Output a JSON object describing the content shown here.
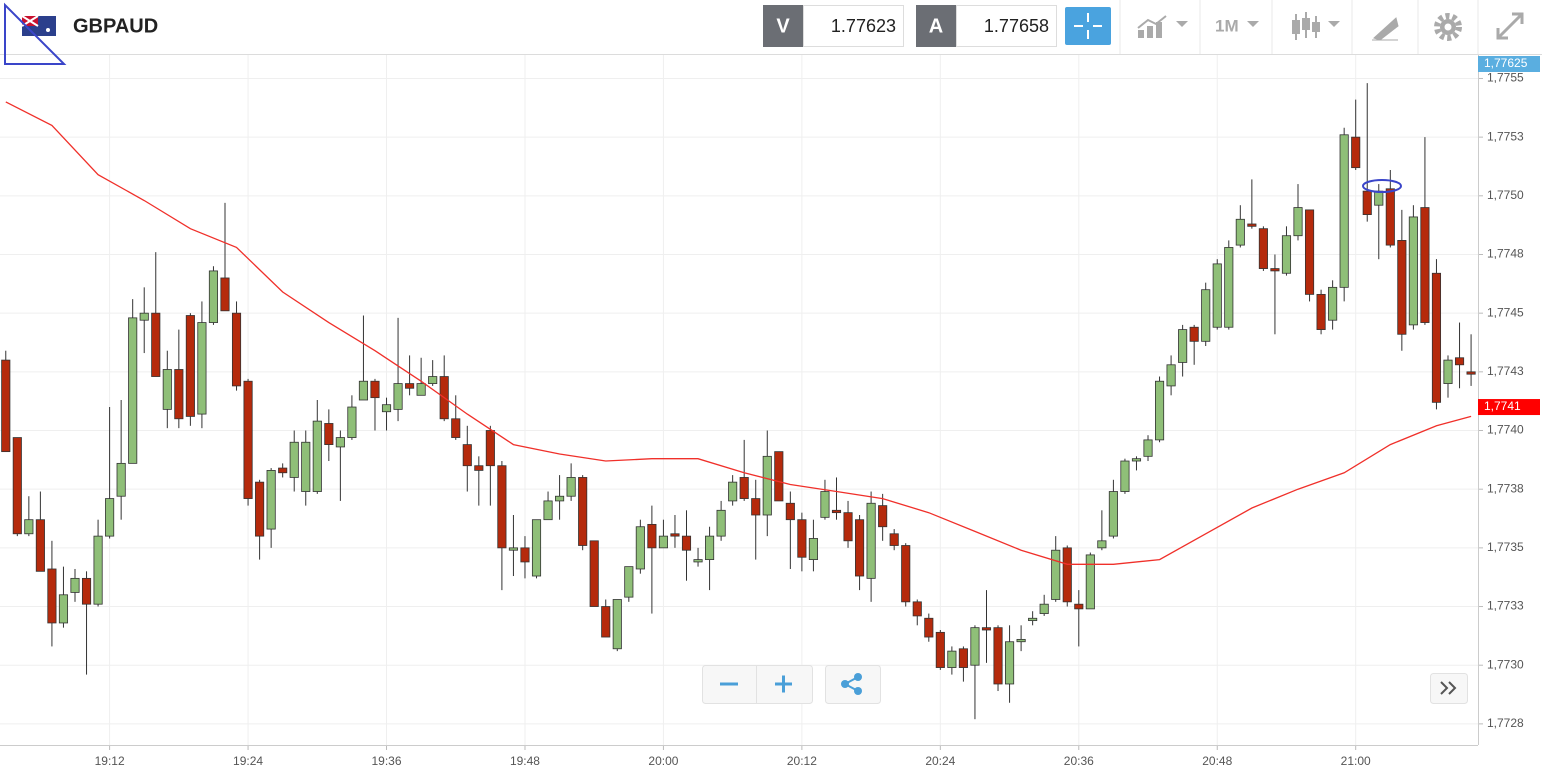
{
  "chart_data": {
    "type": "candlestick",
    "symbol": "GBPAUD",
    "bid_label": "V",
    "bid": 1.77623,
    "ask_label": "A",
    "ask": 1.77658,
    "timeframe": "1M",
    "up_color": "#8fbf78",
    "down_color": "#b52a0c",
    "grid": true,
    "x": [
      1143,
      1144,
      1145,
      1146,
      1147,
      1148,
      1149,
      1150,
      1151,
      1152,
      1153,
      1154,
      1155,
      1156,
      1157,
      1158,
      1159,
      1160,
      1161,
      1162,
      1163,
      1164,
      1165,
      1166,
      1167,
      1168,
      1169,
      1170,
      1171,
      1172,
      1173,
      1174,
      1175,
      1176,
      1177,
      1178,
      1179,
      1180,
      1181,
      1182,
      1183,
      1184,
      1185,
      1186,
      1187,
      1188,
      1189,
      1190,
      1191,
      1192,
      1193,
      1194,
      1195,
      1196,
      1197,
      1198,
      1199,
      1200,
      1201,
      1202,
      1203,
      1204,
      1205,
      1206,
      1207,
      1208,
      1209,
      1210,
      1211,
      1212,
      1213,
      1214,
      1215,
      1216,
      1217,
      1218,
      1219,
      1220,
      1221,
      1222,
      1223,
      1224,
      1225,
      1226,
      1227,
      1228,
      1229,
      1230,
      1231,
      1232,
      1233,
      1234,
      1235,
      1236,
      1237,
      1238,
      1239,
      1240,
      1241,
      1242,
      1243,
      1244,
      1245,
      1246,
      1247,
      1248,
      1249,
      1250,
      1251,
      1252,
      1253,
      1254,
      1255,
      1256,
      1257,
      1258,
      1259,
      1260,
      1261,
      1262,
      1263,
      1264,
      1265,
      1266,
      1267,
      1268,
      1269,
      1270
    ],
    "open": [
      1.7743,
      1.77397,
      1.77356,
      1.77362,
      1.77341,
      1.77318,
      1.77331,
      1.77337,
      1.77326,
      1.77355,
      1.77372,
      1.77386,
      1.77447,
      1.7745,
      1.77409,
      1.77426,
      1.77449,
      1.77407,
      1.77446,
      1.77465,
      1.7745,
      1.77421,
      1.77378,
      1.77358,
      1.77384,
      1.7738,
      1.77374,
      1.77374,
      1.77403,
      1.77393,
      1.77397,
      1.77413,
      1.77421,
      1.77408,
      1.77409,
      1.7742,
      1.77415,
      1.7742,
      1.77423,
      1.77405,
      1.77394,
      1.77385,
      1.774,
      1.77385,
      1.77349,
      1.7735,
      1.77338,
      1.77362,
      1.7737,
      1.77372,
      1.7738,
      1.77353,
      1.77325,
      1.77307,
      1.77329,
      1.77341,
      1.7736,
      1.7735,
      1.77356,
      1.77355,
      1.77344,
      1.77345,
      1.77355,
      1.7737,
      1.7738,
      1.77371,
      1.77364,
      1.77391,
      1.77369,
      1.77362,
      1.77345,
      1.77363,
      1.77366,
      1.77365,
      1.77362,
      1.77337,
      1.77368,
      1.77356,
      1.77351,
      1.77327,
      1.7732,
      1.77314,
      1.77299,
      1.77307,
      1.773,
      1.77316,
      1.77316,
      1.77292,
      1.7731,
      1.77319,
      1.77322,
      1.77328,
      1.7735,
      1.77326,
      1.77324,
      1.7735,
      1.77355,
      1.77374,
      1.77387,
      1.77389,
      1.77396,
      1.77419,
      1.77429,
      1.77444,
      1.77438,
      1.77444,
      1.77444,
      1.77479,
      1.77488,
      1.77486,
      1.77469,
      1.77467,
      1.77483,
      1.77494,
      1.77458,
      1.77447,
      1.77461,
      1.77525,
      1.77502,
      1.77496,
      1.77503,
      1.77481,
      1.77445,
      1.77495,
      1.77467,
      1.7742,
      1.77431,
      1.77425
    ],
    "high": [
      1.77434,
      1.77397,
      1.77372,
      1.77374,
      1.77353,
      1.77342,
      1.77341,
      1.7734,
      1.77362,
      1.7741,
      1.77413,
      1.77456,
      1.77461,
      1.77476,
      1.77434,
      1.77443,
      1.7745,
      1.77455,
      1.7747,
      1.77497,
      1.77455,
      1.77422,
      1.77379,
      1.77384,
      1.77386,
      1.774,
      1.774,
      1.77413,
      1.77409,
      1.774,
      1.77415,
      1.77449,
      1.77422,
      1.77414,
      1.77448,
      1.77432,
      1.77431,
      1.7743,
      1.77432,
      1.77415,
      1.77402,
      1.77389,
      1.77402,
      1.77387,
      1.77364,
      1.77355,
      1.77362,
      1.77374,
      1.77381,
      1.77386,
      1.77381,
      1.77353,
      1.77328,
      1.77328,
      1.77342,
      1.77362,
      1.77368,
      1.77362,
      1.77364,
      1.77366,
      1.7735,
      1.77359,
      1.7737,
      1.77381,
      1.77396,
      1.77379,
      1.774,
      1.77391,
      1.77374,
      1.77365,
      1.77362,
      1.77379,
      1.7738,
      1.7737,
      1.77364,
      1.77374,
      1.77373,
      1.77358,
      1.77352,
      1.77328,
      1.77322,
      1.77315,
      1.77308,
      1.77308,
      1.77317,
      1.77332,
      1.77317,
      1.77317,
      1.77317,
      1.77323,
      1.7733,
      1.77355,
      1.77351,
      1.77332,
      1.77348,
      1.77366,
      1.77379,
      1.77388,
      1.77389,
      1.77398,
      1.77423,
      1.77432,
      1.77445,
      1.77445,
      1.77463,
      1.77473,
      1.77481,
      1.77496,
      1.77507,
      1.77487,
      1.77475,
      1.77487,
      1.77505,
      1.77494,
      1.7746,
      1.77464,
      1.77529,
      1.77541,
      1.77548,
      1.77505,
      1.77511,
      1.77494,
      1.77496,
      1.77525,
      1.77473,
      1.77432,
      1.77446,
      1.77441
    ],
    "low": [
      1.77391,
      1.77355,
      1.77355,
      1.7734,
      1.77308,
      1.77316,
      1.77327,
      1.77296,
      1.77325,
      1.77354,
      1.77362,
      1.77386,
      1.77433,
      1.77423,
      1.77401,
      1.77401,
      1.77402,
      1.77401,
      1.77445,
      1.77451,
      1.77417,
      1.77368,
      1.77345,
      1.7735,
      1.7738,
      1.77374,
      1.77368,
      1.77373,
      1.77387,
      1.7737,
      1.77396,
      1.77413,
      1.774,
      1.774,
      1.77404,
      1.77415,
      1.77415,
      1.77419,
      1.77404,
      1.77396,
      1.77374,
      1.77368,
      1.77368,
      1.77332,
      1.77338,
      1.77337,
      1.77337,
      1.77362,
      1.77362,
      1.7737,
      1.77349,
      1.77325,
      1.77312,
      1.77306,
      1.77327,
      1.77339,
      1.77322,
      1.7735,
      1.7735,
      1.77336,
      1.77342,
      1.77332,
      1.77353,
      1.77368,
      1.7737,
      1.77345,
      1.77355,
      1.7737,
      1.77341,
      1.7734,
      1.7734,
      1.77362,
      1.77362,
      1.7735,
      1.77332,
      1.77327,
      1.77353,
      1.77349,
      1.77325,
      1.77317,
      1.7731,
      1.77298,
      1.77296,
      1.77293,
      1.77277,
      1.77301,
      1.77289,
      1.77284,
      1.77306,
      1.77317,
      1.77321,
      1.77327,
      1.77325,
      1.77308,
      1.77324,
      1.77349,
      1.77354,
      1.77373,
      1.77383,
      1.77387,
      1.77395,
      1.77415,
      1.77423,
      1.77428,
      1.77436,
      1.77443,
      1.77443,
      1.77478,
      1.77486,
      1.77468,
      1.77441,
      1.77466,
      1.77481,
      1.77455,
      1.77441,
      1.77443,
      1.77455,
      1.77511,
      1.77489,
      1.77473,
      1.77478,
      1.77434,
      1.77443,
      1.77445,
      1.77409,
      1.77414,
      1.77418,
      1.77419
    ],
    "close": [
      1.77391,
      1.77356,
      1.77362,
      1.7734,
      1.77318,
      1.7733,
      1.77337,
      1.77326,
      1.77355,
      1.77371,
      1.77386,
      1.77448,
      1.7745,
      1.77423,
      1.77426,
      1.77405,
      1.77406,
      1.77446,
      1.77468,
      1.77451,
      1.77419,
      1.77371,
      1.77355,
      1.77383,
      1.77382,
      1.77395,
      1.77395,
      1.77404,
      1.77394,
      1.77397,
      1.7741,
      1.77421,
      1.77414,
      1.77411,
      1.7742,
      1.77418,
      1.7742,
      1.77423,
      1.77405,
      1.77397,
      1.77385,
      1.77383,
      1.77385,
      1.7735,
      1.7735,
      1.77344,
      1.77362,
      1.7737,
      1.77372,
      1.7738,
      1.77351,
      1.77325,
      1.77312,
      1.77328,
      1.77342,
      1.77359,
      1.7735,
      1.77355,
      1.77355,
      1.77349,
      1.77345,
      1.77355,
      1.77366,
      1.77378,
      1.77371,
      1.77364,
      1.77389,
      1.7737,
      1.77362,
      1.77346,
      1.77354,
      1.77374,
      1.77365,
      1.77353,
      1.77338,
      1.77369,
      1.77359,
      1.77351,
      1.77327,
      1.77321,
      1.77312,
      1.77299,
      1.77306,
      1.77299,
      1.77316,
      1.77315,
      1.77292,
      1.7731,
      1.77311,
      1.7732,
      1.77326,
      1.77349,
      1.77327,
      1.77324,
      1.77347,
      1.77353,
      1.77374,
      1.77387,
      1.77388,
      1.77396,
      1.77421,
      1.77428,
      1.77443,
      1.77438,
      1.7746,
      1.77471,
      1.77478,
      1.7749,
      1.77487,
      1.77469,
      1.77468,
      1.77483,
      1.77495,
      1.77458,
      1.77443,
      1.77461,
      1.77526,
      1.77512,
      1.77492,
      1.77502,
      1.77479,
      1.77441,
      1.77491,
      1.77446,
      1.77412,
      1.7743,
      1.77428,
      1.77424
    ],
    "line": {
      "color": "#f0302a",
      "x": [
        1143,
        1147,
        1151,
        1155,
        1159,
        1163,
        1167,
        1171,
        1175,
        1179,
        1183,
        1187,
        1191,
        1195,
        1199,
        1203,
        1207,
        1211,
        1215,
        1219,
        1223,
        1227,
        1231,
        1235,
        1239,
        1243,
        1247,
        1251,
        1255,
        1259,
        1263,
        1267,
        1270
      ],
      "values": [
        1.7754,
        1.7753,
        1.77509,
        1.77498,
        1.77486,
        1.77478,
        1.77459,
        1.77446,
        1.77434,
        1.77421,
        1.77407,
        1.77394,
        1.7739,
        1.77387,
        1.77388,
        1.77388,
        1.77382,
        1.77377,
        1.77374,
        1.77371,
        1.77365,
        1.77357,
        1.77349,
        1.77343,
        1.77343,
        1.77345,
        1.77356,
        1.77367,
        1.77375,
        1.77382,
        1.77394,
        1.77402,
        1.77406
      ]
    },
    "price_tags": [
      {
        "value": 1.77625,
        "label": "1,77625",
        "color": "#5aaee0"
      },
      {
        "value": 1.7741,
        "label": "1,7741",
        "color": "#ff0000"
      }
    ],
    "xlim": [
      1142.5,
      1270.6
    ],
    "xticks": [
      {
        "value": 1152,
        "label": "19:12"
      },
      {
        "value": 1164,
        "label": "19:24"
      },
      {
        "value": 1176,
        "label": "19:36"
      },
      {
        "value": 1188,
        "label": "19:48"
      },
      {
        "value": 1200,
        "label": "20:00"
      },
      {
        "value": 1212,
        "label": "20:12"
      },
      {
        "value": 1224,
        "label": "20:24"
      },
      {
        "value": 1236,
        "label": "20:36"
      },
      {
        "value": 1248,
        "label": "20:48"
      },
      {
        "value": 1260,
        "label": "21:00"
      }
    ],
    "ylim": [
      1.77266,
      1.7756
    ],
    "yticks": [
      {
        "value": 1.77275,
        "label": "1,7728"
      },
      {
        "value": 1.773,
        "label": "1,7730"
      },
      {
        "value": 1.77325,
        "label": "1,7733"
      },
      {
        "value": 1.7735,
        "label": "1,7735"
      },
      {
        "value": 1.77375,
        "label": "1,7738"
      },
      {
        "value": 1.774,
        "label": "1,7740"
      },
      {
        "value": 1.77425,
        "label": "1,7743"
      },
      {
        "value": 1.7745,
        "label": "1,7745"
      },
      {
        "value": 1.77475,
        "label": "1,7748"
      },
      {
        "value": 1.775,
        "label": "1,7750"
      },
      {
        "value": 1.77525,
        "label": "1,7753"
      },
      {
        "value": 1.7755,
        "label": "1,7755"
      }
    ]
  }
}
